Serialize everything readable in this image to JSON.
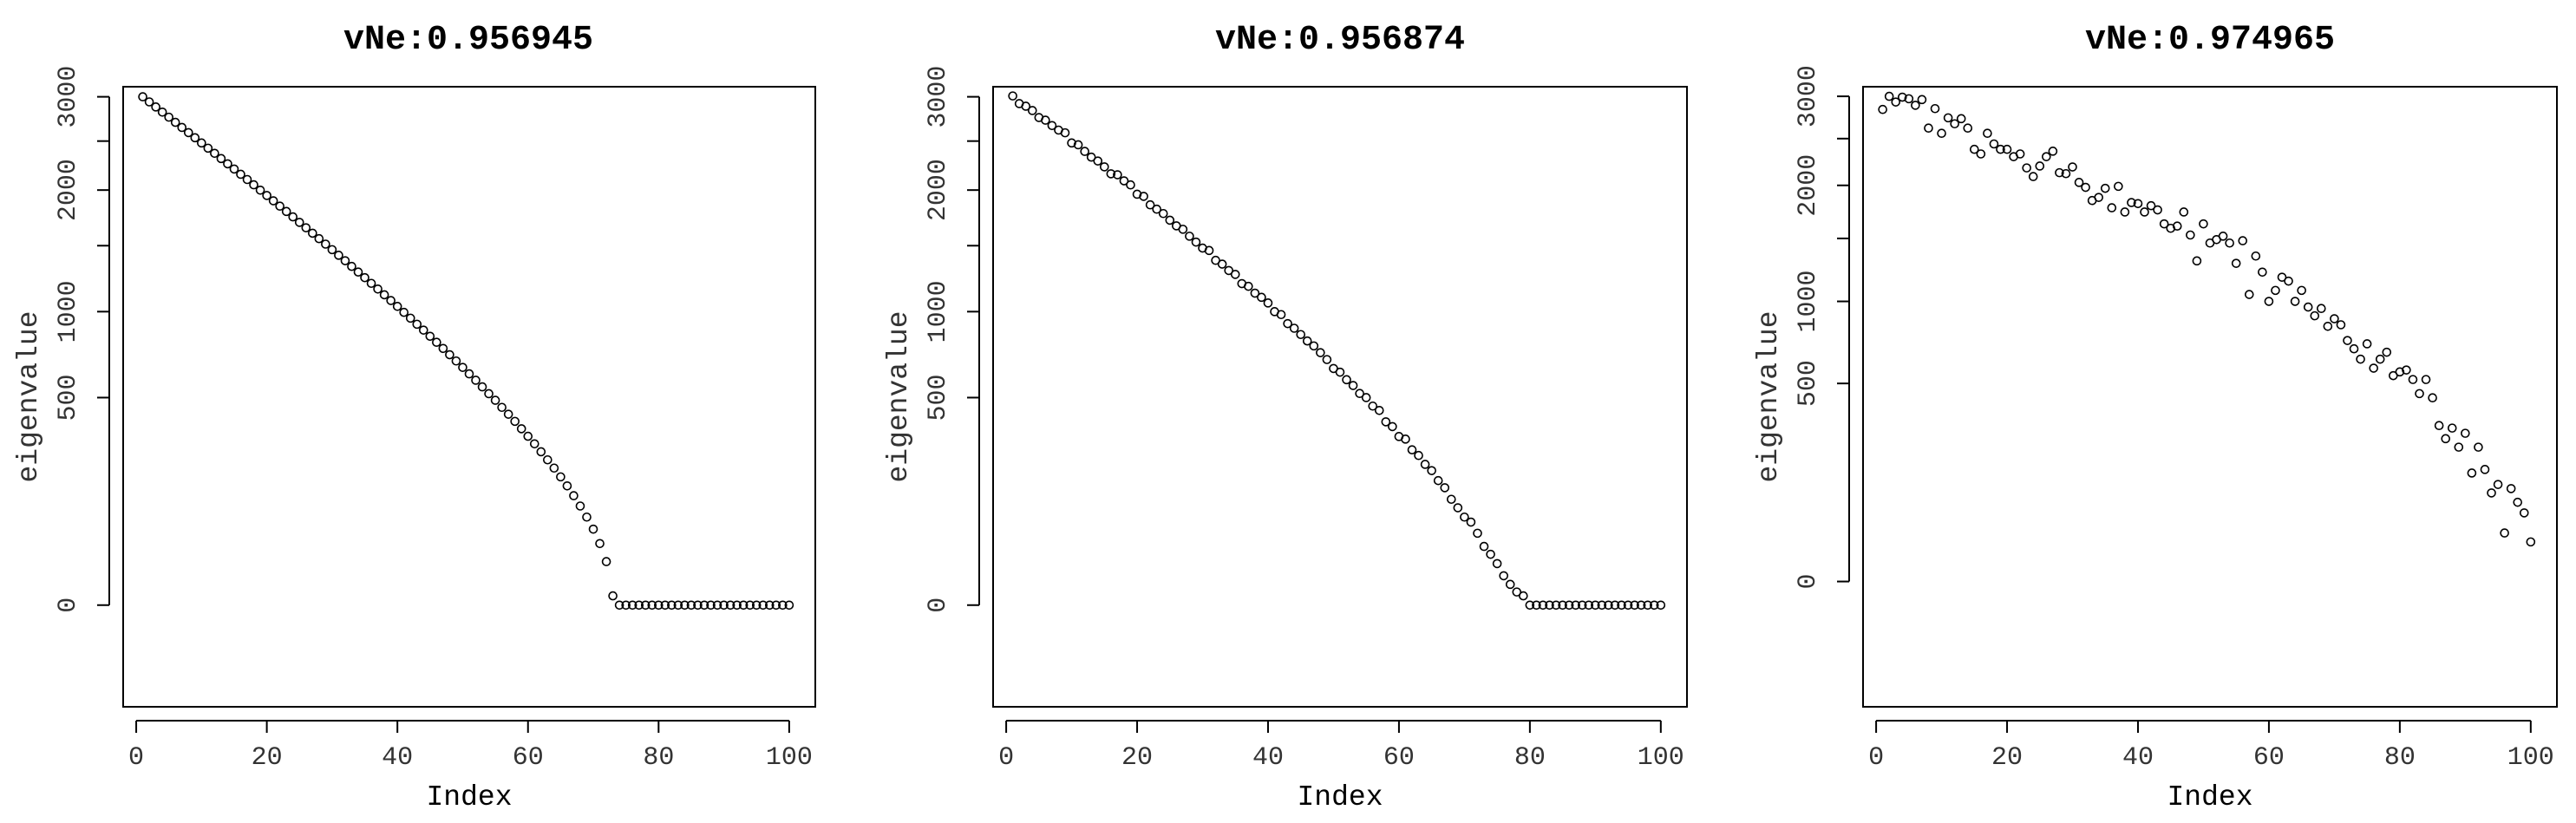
{
  "chart_data": [
    {
      "type": "scatter",
      "title": "vNe:0.956945",
      "xlabel": "Index",
      "ylabel": "eigenvalue",
      "x_ticks": [
        "0",
        "20",
        "40",
        "60",
        "80",
        "100"
      ],
      "y_ticks": [
        "0",
        "500",
        "1000",
        "2000",
        "3000"
      ],
      "xlim": [
        -2,
        104
      ],
      "ylim": [
        -120,
        3120
      ],
      "y_scale": "sqrt",
      "x": [
        1,
        2,
        3,
        4,
        5,
        6,
        7,
        8,
        9,
        10,
        11,
        12,
        13,
        14,
        15,
        16,
        17,
        18,
        19,
        20,
        21,
        22,
        23,
        24,
        25,
        26,
        27,
        28,
        29,
        30,
        31,
        32,
        33,
        34,
        35,
        36,
        37,
        38,
        39,
        40,
        41,
        42,
        43,
        44,
        45,
        46,
        47,
        48,
        49,
        50,
        51,
        52,
        53,
        54,
        55,
        56,
        57,
        58,
        59,
        60,
        61,
        62,
        63,
        64,
        65,
        66,
        67,
        68,
        69,
        70,
        71,
        72,
        73,
        74,
        75,
        76,
        77,
        78,
        79,
        80,
        81,
        82,
        83,
        84,
        85,
        86,
        87,
        88,
        89,
        90,
        91,
        92,
        93,
        94,
        95,
        96,
        97,
        98,
        99,
        100
      ],
      "values": [
        3000,
        2940,
        2881,
        2822,
        2764,
        2706,
        2649,
        2592,
        2536,
        2480,
        2424,
        2370,
        2315,
        2261,
        2208,
        2155,
        2103,
        2051,
        1999,
        1948,
        1898,
        1848,
        1799,
        1750,
        1701,
        1653,
        1606,
        1559,
        1513,
        1467,
        1421,
        1377,
        1332,
        1288,
        1245,
        1202,
        1160,
        1118,
        1077,
        1036,
        995,
        956,
        916,
        878,
        839,
        802,
        765,
        728,
        692,
        656,
        621,
        587,
        553,
        519,
        487,
        454,
        423,
        392,
        361,
        331,
        302,
        273,
        245,
        218,
        191,
        165,
        139,
        114,
        90,
        67,
        44,
        22,
        1,
        0,
        0,
        0,
        0,
        0,
        0,
        0,
        0,
        0,
        0,
        0,
        0,
        0,
        0,
        0,
        0,
        0,
        0,
        0,
        0,
        0,
        0,
        0,
        0,
        0,
        0,
        0
      ]
    },
    {
      "type": "scatter",
      "title": "vNe:0.956874",
      "xlabel": "Index",
      "ylabel": "eigenvalue",
      "x_ticks": [
        "0",
        "20",
        "40",
        "60",
        "80",
        "100"
      ],
      "y_ticks": [
        "0",
        "500",
        "1000",
        "2000",
        "3000"
      ],
      "xlim": [
        -2,
        104
      ],
      "ylim": [
        -120,
        3120
      ],
      "y_scale": "sqrt",
      "x": [
        1,
        2,
        3,
        4,
        5,
        6,
        7,
        8,
        9,
        10,
        11,
        12,
        13,
        14,
        15,
        16,
        17,
        18,
        19,
        20,
        21,
        22,
        23,
        24,
        25,
        26,
        27,
        28,
        29,
        30,
        31,
        32,
        33,
        34,
        35,
        36,
        37,
        38,
        39,
        40,
        41,
        42,
        43,
        44,
        45,
        46,
        47,
        48,
        49,
        50,
        51,
        52,
        53,
        54,
        55,
        56,
        57,
        58,
        59,
        60,
        61,
        62,
        63,
        64,
        65,
        66,
        67,
        68,
        69,
        70,
        71,
        72,
        73,
        74,
        75,
        76,
        77,
        78,
        79,
        80,
        81,
        82,
        83,
        84,
        85,
        86,
        87,
        88,
        89,
        90,
        91,
        92,
        93,
        94,
        95,
        96,
        97,
        98,
        99,
        100
      ],
      "values": [
        3010,
        2920,
        2890,
        2840,
        2760,
        2730,
        2670,
        2620,
        2590,
        2480,
        2460,
        2390,
        2330,
        2290,
        2230,
        2160,
        2150,
        2090,
        2050,
        1960,
        1940,
        1860,
        1820,
        1780,
        1720,
        1670,
        1640,
        1580,
        1530,
        1480,
        1460,
        1380,
        1350,
        1300,
        1270,
        1200,
        1180,
        1130,
        1100,
        1060,
        1000,
        980,
        920,
        890,
        850,
        810,
        780,
        740,
        700,
        650,
        630,
        590,
        560,
        520,
        500,
        460,
        440,
        390,
        370,
        330,
        320,
        280,
        260,
        230,
        210,
        180,
        160,
        130,
        110,
        90,
        80,
        60,
        40,
        30,
        20,
        10,
        5,
        2,
        1,
        0,
        0,
        0,
        0,
        0,
        0,
        0,
        0,
        0,
        0,
        0,
        0,
        0,
        0,
        0,
        0,
        0,
        0,
        0,
        0,
        0
      ]
    },
    {
      "type": "scatter",
      "title": "vNe:0.974965",
      "xlabel": "Index",
      "ylabel": "eigenvalue",
      "x_ticks": [
        "0",
        "20",
        "40",
        "60",
        "80",
        "100"
      ],
      "y_ticks": [
        "0",
        "500",
        "1000",
        "2000",
        "3000"
      ],
      "xlim": [
        -2,
        104
      ],
      "ylim": [
        -200,
        3120
      ],
      "y_scale": "sqrt",
      "x": [
        1,
        2,
        3,
        4,
        5,
        6,
        7,
        8,
        9,
        10,
        11,
        12,
        13,
        14,
        15,
        16,
        17,
        18,
        19,
        20,
        21,
        22,
        23,
        24,
        25,
        26,
        27,
        28,
        29,
        30,
        31,
        32,
        33,
        34,
        35,
        36,
        37,
        38,
        39,
        40,
        41,
        42,
        43,
        44,
        45,
        46,
        47,
        48,
        49,
        50,
        51,
        52,
        53,
        54,
        55,
        56,
        57,
        58,
        59,
        60,
        61,
        62,
        63,
        64,
        65,
        66,
        67,
        68,
        69,
        70,
        71,
        72,
        73,
        74,
        75,
        76,
        77,
        78,
        79,
        80,
        81,
        82,
        83,
        84,
        85,
        86,
        87,
        88,
        89,
        90,
        91,
        92,
        93,
        94,
        95,
        96,
        97,
        98,
        99,
        100
      ],
      "values": [
        2840,
        3000,
        2930,
        2990,
        2970,
        2890,
        2960,
        2620,
        2850,
        2560,
        2740,
        2670,
        2730,
        2620,
        2380,
        2330,
        2560,
        2440,
        2380,
        2380,
        2300,
        2330,
        2180,
        2090,
        2200,
        2300,
        2360,
        2130,
        2120,
        2190,
        2030,
        1980,
        1850,
        1880,
        1970,
        1780,
        1990,
        1740,
        1830,
        1820,
        1740,
        1800,
        1760,
        1630,
        1590,
        1610,
        1740,
        1530,
        1310,
        1630,
        1460,
        1490,
        1520,
        1460,
        1290,
        1480,
        1050,
        1350,
        1220,
        1000,
        1080,
        1180,
        1150,
        1000,
        1080,
        960,
        900,
        950,
        830,
        880,
        840,
        740,
        690,
        630,
        720,
        580,
        630,
        670,
        540,
        560,
        570,
        520,
        450,
        520,
        430,
        310,
        260,
        300,
        230,
        280,
        150,
        230,
        160,
        100,
        120,
        30,
        110,
        80,
        60,
        20
      ]
    }
  ]
}
